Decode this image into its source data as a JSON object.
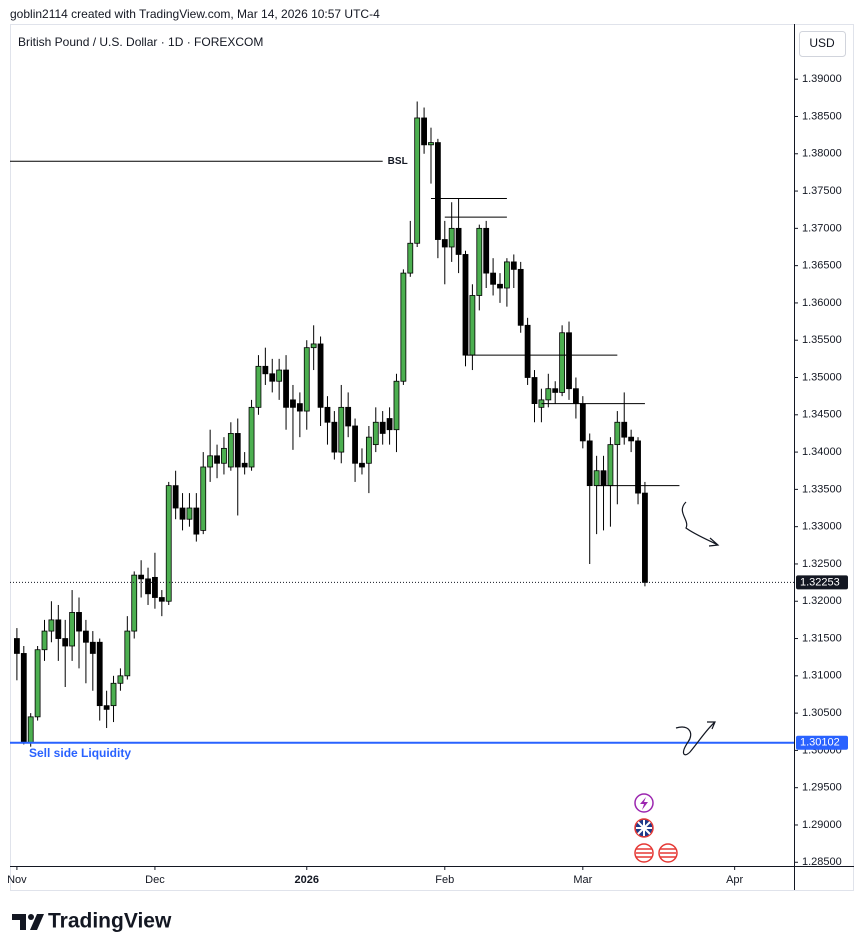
{
  "header": {
    "credit": "goblin2114 created with TradingView.com, Mar 14, 2026 10:57 UTC-4"
  },
  "branding": {
    "logo_text": "TradingView"
  },
  "chart_data": {
    "type": "candlestick",
    "title": "British Pound / U.S. Dollar · 1D · FOREXCOM",
    "currency": "USD",
    "up_color": "#4caf50",
    "down_color": "#000000",
    "xlim": [
      -1,
      112.6
    ],
    "xticks": [
      {
        "value": 0,
        "label": "Nov"
      },
      {
        "value": 20,
        "label": "Dec"
      },
      {
        "value": 42,
        "label": "2026"
      },
      {
        "value": 62,
        "label": "Feb"
      },
      {
        "value": 82,
        "label": "Mar"
      },
      {
        "value": 104,
        "label": "Apr"
      }
    ],
    "ylim": [
      1.2845,
      1.3974
    ],
    "yticks": [
      {
        "value": 1.285,
        "label": "1.28500"
      },
      {
        "value": 1.29,
        "label": "1.29000"
      },
      {
        "value": 1.295,
        "label": "1.29500"
      },
      {
        "value": 1.3,
        "label": "1.30000"
      },
      {
        "value": 1.305,
        "label": "1.30500"
      },
      {
        "value": 1.31,
        "label": "1.31000"
      },
      {
        "value": 1.315,
        "label": "1.31500"
      },
      {
        "value": 1.32,
        "label": "1.32000"
      },
      {
        "value": 1.325,
        "label": "1.32500"
      },
      {
        "value": 1.33,
        "label": "1.33000"
      },
      {
        "value": 1.335,
        "label": "1.33500"
      },
      {
        "value": 1.34,
        "label": "1.34000"
      },
      {
        "value": 1.345,
        "label": "1.34500"
      },
      {
        "value": 1.35,
        "label": "1.35000"
      },
      {
        "value": 1.355,
        "label": "1.35500"
      },
      {
        "value": 1.36,
        "label": "1.36000"
      },
      {
        "value": 1.365,
        "label": "1.36500"
      },
      {
        "value": 1.37,
        "label": "1.37000"
      },
      {
        "value": 1.375,
        "label": "1.37500"
      },
      {
        "value": 1.38,
        "label": "1.38000"
      },
      {
        "value": 1.385,
        "label": "1.38500"
      },
      {
        "value": 1.39,
        "label": "1.39000"
      }
    ],
    "open": [
      1.315,
      1.313,
      1.301,
      1.3045,
      1.3135,
      1.316,
      1.3175,
      1.315,
      1.314,
      1.3185,
      1.316,
      1.3145,
      1.3145,
      1.306,
      1.306,
      1.309,
      1.31,
      1.316,
      1.3235,
      1.323,
      1.3232,
      1.3205,
      1.32,
      1.3355,
      1.3325,
      1.331,
      1.3325,
      1.3295,
      1.338,
      1.3395,
      1.3385,
      1.338,
      1.3425,
      1.3385,
      1.338,
      1.346,
      1.3515,
      1.3505,
      1.3495,
      1.351,
      1.347,
      1.3465,
      1.3455,
      1.354,
      1.3545,
      1.346,
      1.344,
      1.34,
      1.346,
      1.3435,
      1.3385,
      1.3385,
      1.341,
      1.344,
      1.3445,
      1.343,
      1.3495,
      1.364,
      1.368,
      1.3848,
      1.3812,
      1.3815,
      1.3685,
      1.3675,
      1.37,
      1.3665,
      1.353,
      1.361,
      1.37,
      1.364,
      1.3625,
      1.362,
      1.3655,
      1.3645,
      1.357,
      1.35,
      1.346,
      1.347,
      1.3485,
      1.348,
      1.356,
      1.3485,
      1.3465,
      1.3415,
      1.3355,
      1.3375,
      1.3355,
      1.341,
      1.344,
      1.342,
      1.3415,
      1.3345
    ],
    "high": [
      1.3164,
      1.314,
      1.305,
      1.314,
      1.3175,
      1.32,
      1.3195,
      1.3175,
      1.3215,
      1.3205,
      1.3175,
      1.316,
      1.315,
      1.308,
      1.31,
      1.311,
      1.318,
      1.324,
      1.3255,
      1.3245,
      1.3265,
      1.3215,
      1.336,
      1.3375,
      1.3345,
      1.3345,
      1.3345,
      1.34,
      1.343,
      1.341,
      1.342,
      1.344,
      1.3445,
      1.34,
      1.347,
      1.353,
      1.354,
      1.3525,
      1.3525,
      1.353,
      1.349,
      1.348,
      1.355,
      1.357,
      1.3555,
      1.3475,
      1.3455,
      1.349,
      1.348,
      1.3445,
      1.3405,
      1.3435,
      1.346,
      1.3455,
      1.346,
      1.3505,
      1.3645,
      1.371,
      1.387,
      1.3862,
      1.3835,
      1.382,
      1.371,
      1.3735,
      1.374,
      1.367,
      1.3625,
      1.3705,
      1.371,
      1.366,
      1.364,
      1.366,
      1.3665,
      1.3655,
      1.358,
      1.351,
      1.3485,
      1.3505,
      1.3495,
      1.357,
      1.3575,
      1.35,
      1.3475,
      1.3425,
      1.3395,
      1.3395,
      1.342,
      1.3455,
      1.348,
      1.343,
      1.342,
      1.336
    ],
    "low": [
      1.3094,
      1.3008,
      1.3005,
      1.304,
      1.312,
      1.3145,
      1.312,
      1.3085,
      1.312,
      1.311,
      1.309,
      1.308,
      1.304,
      1.303,
      1.3038,
      1.308,
      1.3095,
      1.315,
      1.3205,
      1.3195,
      1.319,
      1.318,
      1.3195,
      1.331,
      1.3295,
      1.33,
      1.328,
      1.329,
      1.336,
      1.3365,
      1.337,
      1.3375,
      1.3315,
      1.337,
      1.3375,
      1.345,
      1.349,
      1.348,
      1.347,
      1.343,
      1.3403,
      1.342,
      1.343,
      1.351,
      1.3435,
      1.341,
      1.339,
      1.3385,
      1.342,
      1.336,
      1.337,
      1.3345,
      1.34,
      1.341,
      1.341,
      1.34,
      1.349,
      1.3635,
      1.3675,
      1.38,
      1.376,
      1.366,
      1.3625,
      1.3655,
      1.364,
      1.3515,
      1.351,
      1.359,
      1.362,
      1.361,
      1.36,
      1.3595,
      1.362,
      1.356,
      1.349,
      1.344,
      1.344,
      1.346,
      1.3465,
      1.3475,
      1.347,
      1.3445,
      1.3405,
      1.325,
      1.329,
      1.3295,
      1.33,
      1.333,
      1.341,
      1.34,
      1.333,
      1.322
    ],
    "close": [
      1.313,
      1.301,
      1.3045,
      1.3135,
      1.316,
      1.3175,
      1.315,
      1.314,
      1.3185,
      1.316,
      1.3145,
      1.313,
      1.306,
      1.3055,
      1.309,
      1.31,
      1.316,
      1.3235,
      1.323,
      1.321,
      1.3205,
      1.32,
      1.3355,
      1.3325,
      1.331,
      1.3325,
      1.329,
      1.338,
      1.3395,
      1.3385,
      1.3405,
      1.3425,
      1.338,
      1.338,
      1.346,
      1.3515,
      1.3505,
      1.3495,
      1.351,
      1.346,
      1.346,
      1.3455,
      1.354,
      1.3545,
      1.346,
      1.344,
      1.34,
      1.346,
      1.3435,
      1.3385,
      1.338,
      1.342,
      1.344,
      1.3425,
      1.343,
      1.3495,
      1.364,
      1.368,
      1.3848,
      1.3812,
      1.3815,
      1.3685,
      1.3675,
      1.37,
      1.3665,
      1.353,
      1.361,
      1.37,
      1.364,
      1.3625,
      1.362,
      1.3655,
      1.3645,
      1.357,
      1.35,
      1.3465,
      1.347,
      1.3485,
      1.348,
      1.356,
      1.3485,
      1.3465,
      1.3415,
      1.3355,
      1.3375,
      1.3355,
      1.341,
      1.344,
      1.342,
      1.3415,
      1.3345,
      1.32253
    ],
    "levels": [
      {
        "label": "BSL",
        "value": 1.379,
        "from": -1,
        "to": 53,
        "color": "#000000"
      },
      {
        "value": 1.374,
        "from": 60,
        "to": 71,
        "color": "#000000"
      },
      {
        "value": 1.3715,
        "from": 62,
        "to": 71,
        "color": "#000000"
      },
      {
        "value": 1.353,
        "from": 65,
        "to": 87,
        "color": "#000000"
      },
      {
        "value": 1.3465,
        "from": 76,
        "to": 91,
        "color": "#000000"
      },
      {
        "value": 1.3355,
        "from": 84,
        "to": 96,
        "color": "#000000"
      },
      {
        "label": "Sell side Liquidity",
        "value": 1.30102,
        "from": -1,
        "to": 112.6,
        "color": "#2962ff"
      }
    ]
  }
}
